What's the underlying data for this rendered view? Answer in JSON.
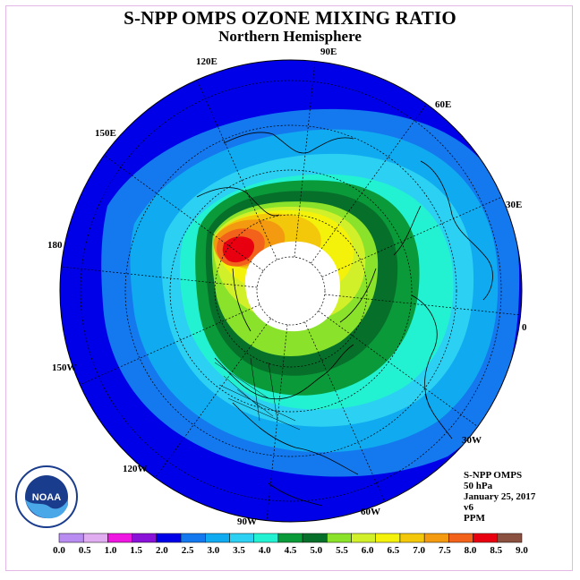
{
  "header": {
    "title": "S-NPP OMPS OZONE MIXING RATIO",
    "subtitle": "Northern Hemisphere"
  },
  "longitude_labels": [
    "90E",
    "60E",
    "30E",
    "0",
    "30W",
    "60W",
    "90W",
    "120W",
    "150W",
    "180",
    "150E",
    "120E"
  ],
  "info": {
    "instrument": "S-NPP OMPS",
    "level": "50 hPa",
    "date": "January 25, 2017",
    "version": "v6",
    "units": "PPM"
  },
  "logo": {
    "text": "NOAA",
    "icon": "noaa-logo-icon"
  },
  "colorbar": {
    "ticks": [
      "0.0",
      "0.5",
      "1.0",
      "1.5",
      "2.0",
      "2.5",
      "3.0",
      "3.5",
      "4.0",
      "4.5",
      "5.0",
      "5.5",
      "6.0",
      "6.5",
      "7.0",
      "7.5",
      "8.0",
      "8.5",
      "9.0"
    ],
    "colors": [
      "#b88cf0",
      "#e0aef0",
      "#ee16e0",
      "#8a12d8",
      "#0000e8",
      "#1478ee",
      "#10aaf0",
      "#2cd0f2",
      "#22f2d2",
      "#0a9a3a",
      "#06702a",
      "#8ae22a",
      "#d2f02a",
      "#f4f20a",
      "#f4c80a",
      "#f49a10",
      "#f2621a",
      "#e80010",
      "#8a5040"
    ]
  }
}
